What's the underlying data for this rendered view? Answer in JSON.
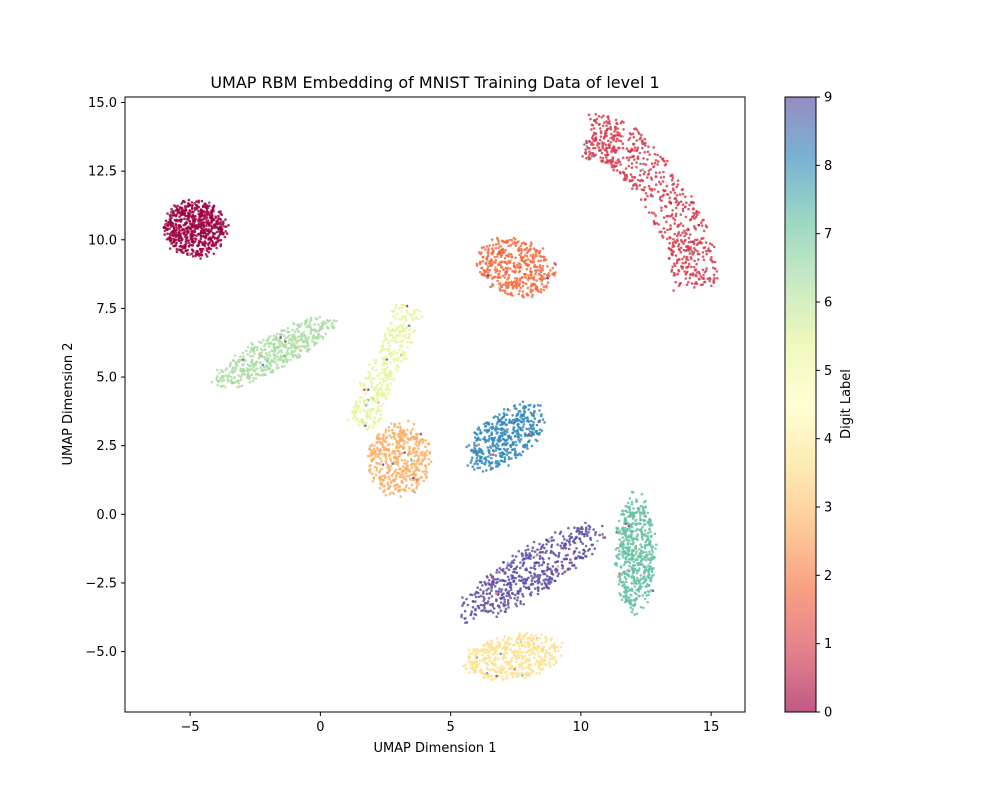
{
  "chart_data": {
    "type": "scatter",
    "title": "UMAP RBM Embedding of MNIST Training Data of level 1",
    "xlabel": "UMAP Dimension 1",
    "ylabel": "UMAP Dimension 2",
    "xlim": [
      -7.5,
      16.3
    ],
    "ylim": [
      -7.2,
      15.2
    ],
    "xticks": [
      -5,
      0,
      5,
      10,
      15
    ],
    "xtick_labels": [
      "−5",
      "0",
      "5",
      "10",
      "15"
    ],
    "yticks": [
      -5.0,
      -2.5,
      0.0,
      2.5,
      5.0,
      7.5,
      10.0,
      12.5,
      15.0
    ],
    "ytick_labels": [
      "−5.0",
      "−2.5",
      "0.0",
      "2.5",
      "5.0",
      "7.5",
      "10.0",
      "12.5",
      "15.0"
    ],
    "grid": false,
    "colorbar": {
      "label": "Digit Label",
      "range": [
        0,
        9
      ],
      "ticks": [
        0,
        1,
        2,
        3,
        4,
        5,
        6,
        7,
        8,
        9
      ],
      "tick_labels": [
        "0",
        "1",
        "2",
        "3",
        "4",
        "5",
        "6",
        "7",
        "8",
        "9"
      ],
      "colormap": "Spectral",
      "colors": [
        "#9e0142",
        "#d53e4f",
        "#f46d43",
        "#fdae61",
        "#fee08b",
        "#ffffbf",
        "#e6f598",
        "#abdda4",
        "#66c2a5",
        "#3288bd",
        "#5e4fa2"
      ]
    },
    "clusters": [
      {
        "digit": 0,
        "color": "#9e0142",
        "center": [
          -4.8,
          10.4
        ],
        "spread": [
          1.2,
          1.05
        ],
        "angle": 0,
        "shape": "blob",
        "points": 650
      },
      {
        "digit": 1,
        "color": "#d53e4f",
        "shape": "arc",
        "path": [
          [
            10.2,
            13.8
          ],
          [
            11.5,
            13.5
          ],
          [
            12.9,
            12.1
          ],
          [
            14.2,
            10.0
          ],
          [
            14.4,
            8.3
          ]
        ],
        "width": 0.85,
        "points": 700
      },
      {
        "digit": 2,
        "color": "#f46d43",
        "center": [
          7.5,
          9.0
        ],
        "spread": [
          1.5,
          1.05
        ],
        "angle": -15,
        "shape": "blob",
        "points": 450
      },
      {
        "digit": 3,
        "color": "#fdae61",
        "center": [
          3.0,
          2.0
        ],
        "spread": [
          1.2,
          1.35
        ],
        "angle": 0,
        "shape": "blob",
        "points": 450
      },
      {
        "digit": 4,
        "color": "#fee08b",
        "center": [
          7.4,
          -5.2
        ],
        "spread": [
          1.9,
          0.8
        ],
        "angle": 8,
        "shape": "blob",
        "points": 450
      },
      {
        "digit": 5,
        "color": "#e6f598",
        "shape": "arc",
        "path": [
          [
            3.4,
            7.6
          ],
          [
            2.8,
            6.0
          ],
          [
            2.1,
            4.6
          ],
          [
            1.6,
            3.2
          ]
        ],
        "width": 0.55,
        "points": 350
      },
      {
        "digit": 6,
        "color": "#abdda4",
        "center": [
          -1.8,
          5.9
        ],
        "spread": [
          2.6,
          0.65
        ],
        "angle": 27,
        "shape": "blob",
        "points": 500
      },
      {
        "digit": 7,
        "color": "#66c2a5",
        "center": [
          12.1,
          -1.5
        ],
        "spread": [
          0.75,
          2.15
        ],
        "angle": 0,
        "shape": "blob",
        "points": 550
      },
      {
        "digit": 8,
        "color": "#3288bd",
        "center": [
          7.1,
          2.8
        ],
        "spread": [
          1.75,
          0.9
        ],
        "angle": 35,
        "shape": "blob",
        "points": 450
      },
      {
        "digit": 9,
        "color": "#5e4fa2",
        "center": [
          8.1,
          -2.1
        ],
        "spread": [
          3.2,
          0.85
        ],
        "angle": 30,
        "shape": "blob",
        "points": 550
      }
    ]
  }
}
